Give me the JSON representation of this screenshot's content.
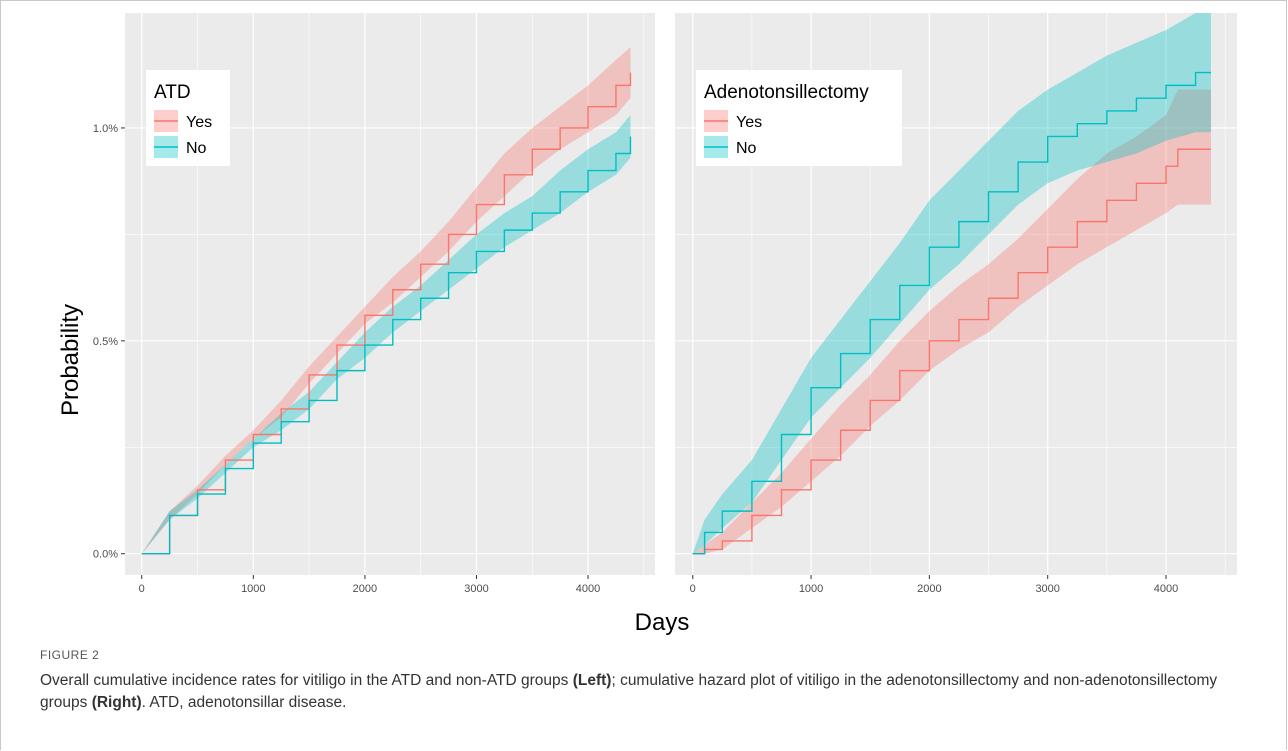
{
  "figure_label": "FIGURE 2",
  "caption": {
    "p1": "Overall cumulative incidence rates for vitiligo in the ATD and non-ATD groups ",
    "b1": "(Left)",
    "p2": "; cumulative hazard plot of vitiligo in the adenotonsillectomy and non-adenotonsillectomy groups ",
    "b2": "(Right)",
    "p3": ". ATD, adenotonsillar disease."
  },
  "colors": {
    "yes": "#F8766D",
    "no": "#00BFC4",
    "panel_bg": "#EBEBEB",
    "grid": "#ffffff"
  },
  "chart_data": [
    {
      "type": "line",
      "xlabel": "Days",
      "ylabel": "Probability",
      "legend_title": "ATD",
      "legend_position": "top-left",
      "grid": true,
      "xlim": [
        -150,
        4600
      ],
      "ylim": [
        -0.0005,
        0.0127
      ],
      "x_ticks": [
        0,
        1000,
        2000,
        3000,
        4000
      ],
      "y_ticks": [
        0,
        0.005,
        0.01
      ],
      "y_tick_labels": [
        "0.0%",
        "0.5%",
        "1.0%"
      ],
      "series": [
        {
          "name": "Yes",
          "color": "#F8766D",
          "x": [
            0,
            250,
            500,
            750,
            1000,
            1250,
            1500,
            1750,
            2000,
            2250,
            2500,
            2750,
            3000,
            3250,
            3500,
            3750,
            4000,
            4250,
            4380
          ],
          "y": [
            0,
            0.0009,
            0.0015,
            0.0022,
            0.0028,
            0.0034,
            0.0042,
            0.0049,
            0.0056,
            0.0062,
            0.0068,
            0.0075,
            0.0082,
            0.0089,
            0.0095,
            0.01,
            0.0105,
            0.011,
            0.0113
          ],
          "lower": [
            0,
            0.0008,
            0.0014,
            0.0021,
            0.0027,
            0.0032,
            0.004,
            0.0047,
            0.0054,
            0.0059,
            0.0065,
            0.0071,
            0.0078,
            0.0084,
            0.009,
            0.0095,
            0.0099,
            0.0103,
            0.0107
          ],
          "upper": [
            0,
            0.001,
            0.0016,
            0.0023,
            0.0029,
            0.0036,
            0.0044,
            0.0051,
            0.0058,
            0.0065,
            0.0071,
            0.0078,
            0.0086,
            0.0094,
            0.01,
            0.0105,
            0.011,
            0.0116,
            0.0119
          ]
        },
        {
          "name": "No",
          "color": "#00BFC4",
          "x": [
            0,
            250,
            500,
            750,
            1000,
            1250,
            1500,
            1750,
            2000,
            2250,
            2500,
            2750,
            3000,
            3250,
            3500,
            3750,
            4000,
            4250,
            4380
          ],
          "y": [
            0,
            0.0009,
            0.0014,
            0.002,
            0.0026,
            0.0031,
            0.0036,
            0.0043,
            0.0049,
            0.0055,
            0.006,
            0.0066,
            0.0071,
            0.0076,
            0.008,
            0.0085,
            0.009,
            0.0094,
            0.0098
          ],
          "lower": [
            0,
            0.0008,
            0.0013,
            0.0019,
            0.0025,
            0.0029,
            0.0034,
            0.0041,
            0.0046,
            0.0052,
            0.0057,
            0.0062,
            0.0067,
            0.0072,
            0.0076,
            0.008,
            0.0085,
            0.0089,
            0.0093
          ],
          "upper": [
            0,
            0.001,
            0.0015,
            0.0021,
            0.0027,
            0.0033,
            0.0038,
            0.0045,
            0.0052,
            0.0058,
            0.0063,
            0.0069,
            0.0075,
            0.008,
            0.0084,
            0.009,
            0.0095,
            0.0099,
            0.0103
          ]
        }
      ]
    },
    {
      "type": "line",
      "xlabel": "Days",
      "ylabel": "Probability",
      "legend_title": "Adenotonsillectomy",
      "legend_position": "top-left",
      "grid": true,
      "xlim": [
        -150,
        4600
      ],
      "ylim": [
        -0.0005,
        0.0127
      ],
      "x_ticks": [
        0,
        1000,
        2000,
        3000,
        4000
      ],
      "y_ticks": [
        0,
        0.005,
        0.01
      ],
      "y_tick_labels": [
        "0.0%",
        "0.5%",
        "1.0%"
      ],
      "series": [
        {
          "name": "Yes",
          "color": "#F8766D",
          "x": [
            0,
            100,
            250,
            500,
            750,
            1000,
            1250,
            1500,
            1750,
            2000,
            2250,
            2500,
            2750,
            3000,
            3250,
            3500,
            3750,
            4000,
            4100,
            4380
          ],
          "y": [
            0,
            0.0001,
            0.0003,
            0.0009,
            0.0015,
            0.0022,
            0.0029,
            0.0036,
            0.0043,
            0.005,
            0.0055,
            0.006,
            0.0066,
            0.0072,
            0.0078,
            0.0083,
            0.0087,
            0.0091,
            0.0095,
            0.0095
          ],
          "lower": [
            0,
            0,
            0.0001,
            0.0006,
            0.0011,
            0.0017,
            0.0023,
            0.003,
            0.0036,
            0.0043,
            0.0048,
            0.0052,
            0.0058,
            0.0063,
            0.0068,
            0.0072,
            0.0076,
            0.008,
            0.0082,
            0.0082
          ],
          "upper": [
            0,
            0.0002,
            0.0005,
            0.0012,
            0.0019,
            0.0027,
            0.0035,
            0.0042,
            0.005,
            0.0057,
            0.0063,
            0.0068,
            0.0074,
            0.0081,
            0.0088,
            0.0094,
            0.0098,
            0.0103,
            0.0109,
            0.0109
          ]
        },
        {
          "name": "No",
          "color": "#00BFC4",
          "x": [
            0,
            100,
            250,
            500,
            750,
            1000,
            1250,
            1500,
            1750,
            2000,
            2250,
            2500,
            2750,
            3000,
            3250,
            3500,
            3750,
            4000,
            4250,
            4380
          ],
          "y": [
            0,
            0.0005,
            0.001,
            0.0017,
            0.0028,
            0.0039,
            0.0047,
            0.0055,
            0.0063,
            0.0072,
            0.0078,
            0.0085,
            0.0092,
            0.0098,
            0.0101,
            0.0104,
            0.0107,
            0.011,
            0.0113,
            0.0113
          ],
          "lower": [
            0,
            0.0002,
            0.0006,
            0.0012,
            0.0022,
            0.0032,
            0.0039,
            0.0046,
            0.0054,
            0.0062,
            0.0068,
            0.0075,
            0.0082,
            0.0087,
            0.009,
            0.0092,
            0.0094,
            0.0097,
            0.0099,
            0.0099
          ],
          "upper": [
            0,
            0.0008,
            0.0014,
            0.0022,
            0.0034,
            0.0046,
            0.0055,
            0.0064,
            0.0073,
            0.0083,
            0.009,
            0.0097,
            0.0104,
            0.0109,
            0.0113,
            0.0117,
            0.012,
            0.0123,
            0.0127,
            0.0127
          ]
        }
      ]
    }
  ]
}
